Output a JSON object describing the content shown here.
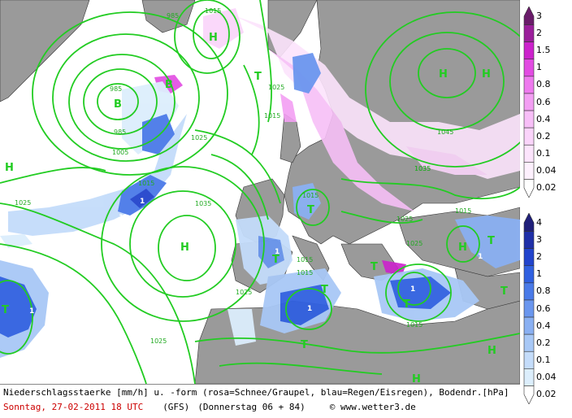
{
  "caption": {
    "description": "Niederschlagsstaerke [mm/h] u. -form (rosa=Schnee/Graupel, blau=Regen/Eisregen), Bodendr.[hPa]",
    "date": "Sonntag, 27-02-2011  18 UTC",
    "model": "(GFS)",
    "lead": "(Donnerstag 06 + 84)",
    "copyright": "© www.wetter3.de"
  },
  "snow_scale": {
    "labels": [
      "3",
      "2",
      "1.5",
      "1",
      "0.8",
      "0.6",
      "0.4",
      "0.2",
      "0.1",
      "0.04",
      "0.02"
    ],
    "colors": [
      "#6a1c6a",
      "#9b1f9b",
      "#cc22cc",
      "#e24be2",
      "#ee7aee",
      "#f39ff3",
      "#f7bff7",
      "#fad4fa",
      "#fce4fc",
      "#fdf0fd",
      "#ffffff"
    ]
  },
  "rain_scale": {
    "labels": [
      "4",
      "3",
      "2",
      "1",
      "0.8",
      "0.6",
      "0.4",
      "0.2",
      "0.1",
      "0.04",
      "0.02"
    ],
    "colors": [
      "#20207a",
      "#2030a8",
      "#2244cc",
      "#3060e0",
      "#4a7ae8",
      "#6a96ee",
      "#8ab0f2",
      "#a8c8f6",
      "#c4dcfa",
      "#dceefc",
      "#ffffff"
    ]
  },
  "pressure_centers": [
    "H",
    "H",
    "H",
    "H",
    "H",
    "H",
    "H",
    "H",
    "B",
    "B",
    "T",
    "T",
    "T",
    "T",
    "T",
    "T",
    "T",
    "T",
    "T",
    "T"
  ],
  "isobar_labels": [
    "1015",
    "985",
    "985",
    "985",
    "1005",
    "1015",
    "1025",
    "1015",
    "1035",
    "1035",
    "1025",
    "1025",
    "1015",
    "1015",
    "1025",
    "1015",
    "1045",
    "1035",
    "1025",
    "1015",
    "1015",
    "1025",
    "1025"
  ],
  "colors": {
    "isobar": "#22cc22",
    "land": "#9a9a9a",
    "sea": "#ffffff",
    "border": "#222222"
  }
}
